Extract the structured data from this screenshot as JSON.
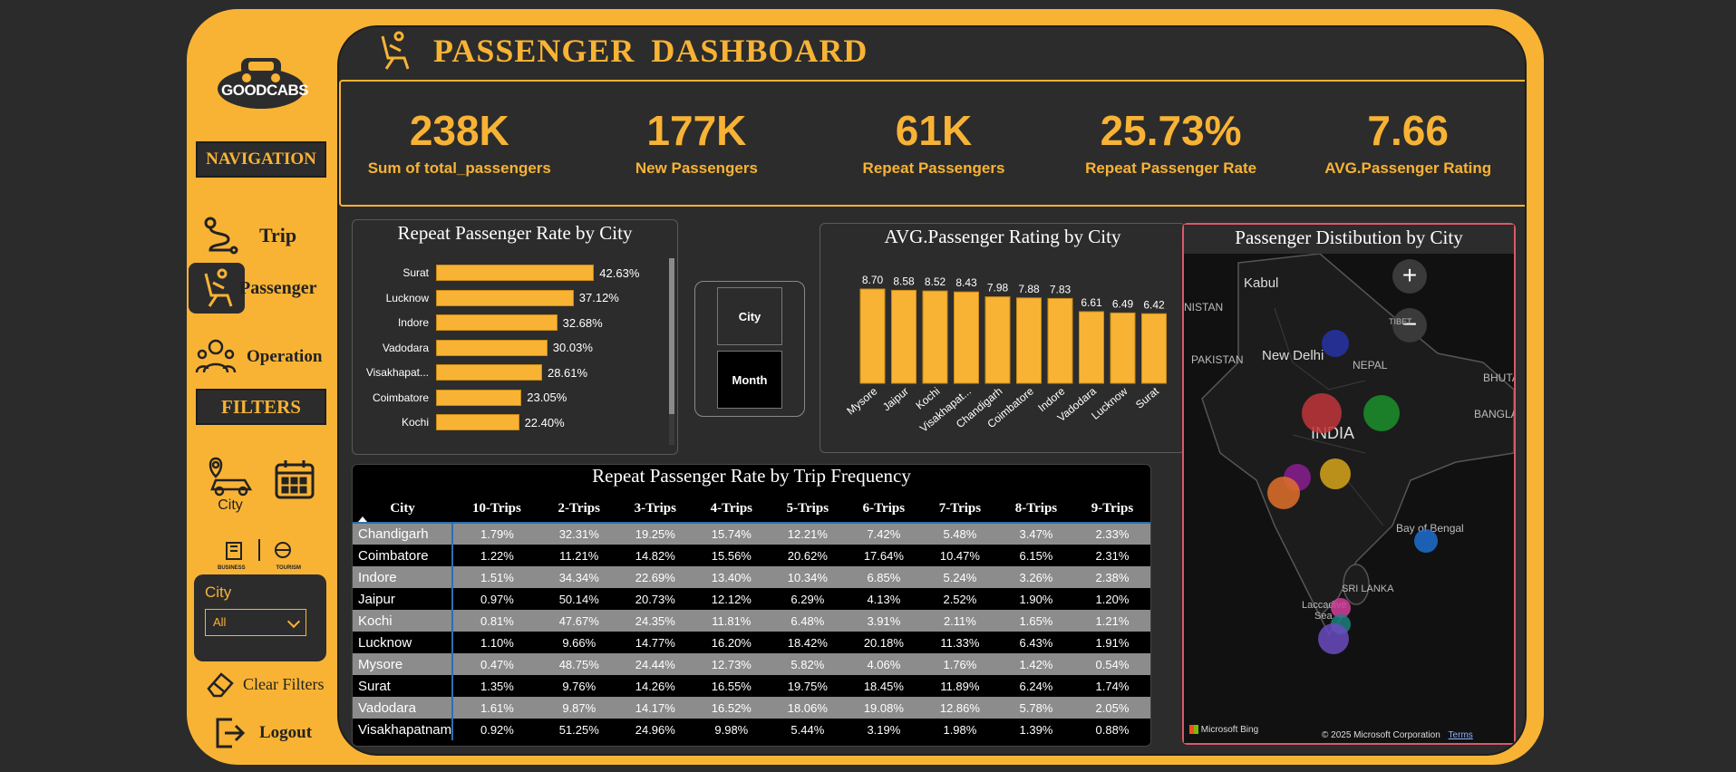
{
  "header": {
    "title": "PASSENGER  DASHBOARD"
  },
  "sidebar": {
    "logo_text": "GOODCABS",
    "navigation_label": "NAVIGATION",
    "nav_items": [
      {
        "label": "Trip",
        "icon": "route-icon",
        "active": false
      },
      {
        "label": "Passenger",
        "icon": "seat-icon",
        "active": true
      },
      {
        "label": "Operation",
        "icon": "people-icon",
        "active": false
      }
    ],
    "filters_label": "FILTERS",
    "city_filter_label": "City",
    "business_label": "BUSINESS",
    "tourism_label": "TOURISM",
    "city_slicer": {
      "title": "City",
      "value": "All"
    },
    "clear_filters": "Clear Filters",
    "logout": "Logout"
  },
  "kpis": [
    {
      "value": "238K",
      "label": "Sum of total_passengers"
    },
    {
      "value": "177K",
      "label": "New Passengers"
    },
    {
      "value": "61K",
      "label": "Repeat Passengers"
    },
    {
      "value": "25.73%",
      "label": "Repeat Passenger Rate"
    },
    {
      "value": "7.66",
      "label": "AVG.Passenger Rating"
    }
  ],
  "toggle": {
    "city": "City",
    "month": "Month"
  },
  "map": {
    "title": "Passenger Distibution by City",
    "labels": {
      "kabul": "Kabul",
      "nistan": "NISTAN",
      "tibet": "TIBET",
      "pakistan": "PAKISTAN",
      "newdelhi": "New Delhi",
      "nepal": "NEPAL",
      "bhuta": "BHUTA",
      "banglad": "BANGLAD",
      "india": "INDIA",
      "bay": "Bay of Bengal",
      "srilanka": "SRI LANKA",
      "laccadive": "Laccadive",
      "sea": "Sea"
    },
    "bing": "Microsoft Bing",
    "copyright": "© 2025 Microsoft Corporation",
    "terms": "Terms",
    "colors": {
      "bubble_1": "#2733a6",
      "bubble_2": "#c0353a",
      "bubble_3": "#1b8f2a",
      "bubble_4": "#8a1d8f",
      "bubble_5": "#d6a41a",
      "bubble_6": "#e0702a",
      "bubble_7": "#1e6fd0",
      "bubble_8": "#d23f9c",
      "bubble_9": "#1e7f7f",
      "bubble_10": "#6b4bbf"
    }
  },
  "chart_data": [
    {
      "type": "bar",
      "orientation": "horizontal",
      "title": "Repeat Passenger Rate by City",
      "categories": [
        "Surat",
        "Lucknow",
        "Indore",
        "Vadodara",
        "Visakhapat...",
        "Coimbatore",
        "Kochi"
      ],
      "values": [
        42.63,
        37.12,
        32.68,
        30.03,
        28.61,
        23.05,
        22.4
      ],
      "labels": [
        "42.63%",
        "37.12%",
        "32.68%",
        "30.03%",
        "28.61%",
        "23.05%",
        "22.40%"
      ]
    },
    {
      "type": "bar",
      "title": "AVG.Passenger Rating by City",
      "categories": [
        "Mysore",
        "Jaipur",
        "Kochi",
        "Visakhapat...",
        "Chandigarh",
        "Coimbatore",
        "Indore",
        "Vadodara",
        "Lucknow",
        "Surat"
      ],
      "values": [
        8.7,
        8.58,
        8.52,
        8.43,
        7.98,
        7.88,
        7.83,
        6.61,
        6.49,
        6.42
      ],
      "labels": [
        "8.70",
        "8.58",
        "8.52",
        "8.43",
        "7.98",
        "7.88",
        "7.83",
        "6.61",
        "6.49",
        "6.42"
      ]
    },
    {
      "type": "table",
      "title": "Repeat Passenger Rate by Trip Frequency",
      "columns": [
        "City",
        "10-Trips",
        "2-Trips",
        "3-Trips",
        "4-Trips",
        "5-Trips",
        "6-Trips",
        "7-Trips",
        "8-Trips",
        "9-Trips"
      ],
      "rows": [
        [
          "Chandigarh",
          "1.79%",
          "32.31%",
          "19.25%",
          "15.74%",
          "12.21%",
          "7.42%",
          "5.48%",
          "3.47%",
          "2.33%"
        ],
        [
          "Coimbatore",
          "1.22%",
          "11.21%",
          "14.82%",
          "15.56%",
          "20.62%",
          "17.64%",
          "10.47%",
          "6.15%",
          "2.31%"
        ],
        [
          "Indore",
          "1.51%",
          "34.34%",
          "22.69%",
          "13.40%",
          "10.34%",
          "6.85%",
          "5.24%",
          "3.26%",
          "2.38%"
        ],
        [
          "Jaipur",
          "0.97%",
          "50.14%",
          "20.73%",
          "12.12%",
          "6.29%",
          "4.13%",
          "2.52%",
          "1.90%",
          "1.20%"
        ],
        [
          "Kochi",
          "0.81%",
          "47.67%",
          "24.35%",
          "11.81%",
          "6.48%",
          "3.91%",
          "2.11%",
          "1.65%",
          "1.21%"
        ],
        [
          "Lucknow",
          "1.10%",
          "9.66%",
          "14.77%",
          "16.20%",
          "18.42%",
          "20.18%",
          "11.33%",
          "6.43%",
          "1.91%"
        ],
        [
          "Mysore",
          "0.47%",
          "48.75%",
          "24.44%",
          "12.73%",
          "5.82%",
          "4.06%",
          "1.76%",
          "1.42%",
          "0.54%"
        ],
        [
          "Surat",
          "1.35%",
          "9.76%",
          "14.26%",
          "16.55%",
          "19.75%",
          "18.45%",
          "11.89%",
          "6.24%",
          "1.74%"
        ],
        [
          "Vadodara",
          "1.61%",
          "9.87%",
          "14.17%",
          "16.52%",
          "18.06%",
          "19.08%",
          "12.86%",
          "5.78%",
          "2.05%"
        ],
        [
          "Visakhapatnam",
          "0.92%",
          "51.25%",
          "24.96%",
          "9.98%",
          "5.44%",
          "3.19%",
          "1.98%",
          "1.39%",
          "0.88%"
        ]
      ]
    }
  ]
}
